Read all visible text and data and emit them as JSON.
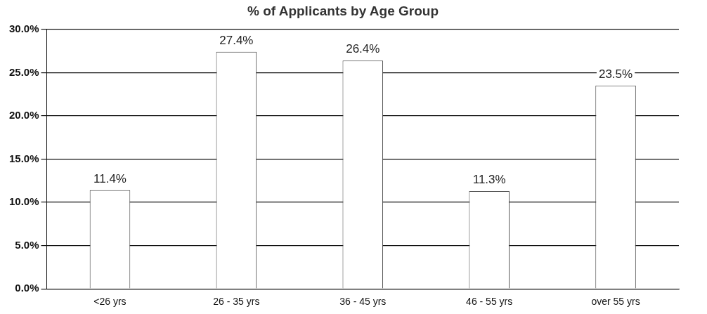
{
  "chart_data": {
    "type": "bar",
    "title": "% of Applicants by Age Group",
    "categories": [
      "<26 yrs",
      "26 - 35 yrs",
      "36 - 45 yrs",
      "46 - 55 yrs",
      "over 55 yrs"
    ],
    "values": [
      11.4,
      27.4,
      26.4,
      11.3,
      23.5
    ],
    "value_labels": [
      "11.4%",
      "27.4%",
      "26.4%",
      "11.3%",
      "23.5%"
    ],
    "color": "#ffffff",
    "ylim": [
      0,
      30
    ],
    "yticks": [
      {
        "value": 0,
        "label": "0.0%"
      },
      {
        "value": 5,
        "label": "5.0%"
      },
      {
        "value": 10,
        "label": "10.0%"
      },
      {
        "value": 15,
        "label": "15.0%"
      },
      {
        "value": 20,
        "label": "20.0%"
      },
      {
        "value": 25,
        "label": "25.0%"
      },
      {
        "value": 30,
        "label": "30.0%"
      }
    ],
    "grid": "y"
  }
}
